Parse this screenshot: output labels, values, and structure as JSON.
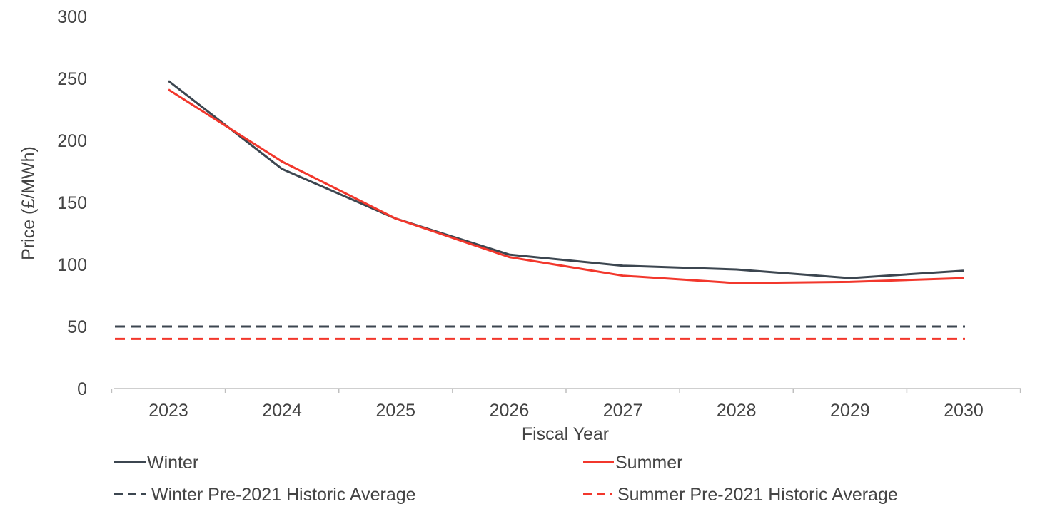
{
  "chart_data": {
    "type": "line",
    "title": "",
    "xlabel": "Fiscal Year",
    "ylabel": "Price (£/MWh)",
    "ylim": [
      0,
      300
    ],
    "y_ticks": [
      "0",
      "50",
      "100",
      "150",
      "200",
      "250",
      "300"
    ],
    "categories": [
      "2023",
      "2024",
      "2025",
      "2026",
      "2027",
      "2028",
      "2029",
      "2030"
    ],
    "grid": false,
    "legend_position": "bottom",
    "series": [
      {
        "name": "Winter",
        "style": "solid",
        "color": "#3c4650",
        "values": [
          248,
          177,
          137,
          108,
          99,
          96,
          89,
          95
        ]
      },
      {
        "name": "Summer",
        "style": "solid",
        "color": "#f2372c",
        "values": [
          241,
          183,
          137,
          106,
          91,
          85,
          86,
          89
        ]
      },
      {
        "name": "Winter Pre-2021 Historic Average",
        "style": "dashed",
        "color": "#3c4650",
        "values": [
          50,
          50,
          50,
          50,
          50,
          50,
          50,
          50
        ]
      },
      {
        "name": "Summer Pre-2021 Historic Average",
        "style": "dashed",
        "color": "#f2372c",
        "values": [
          40,
          40,
          40,
          40,
          40,
          40,
          40,
          40
        ]
      }
    ]
  }
}
